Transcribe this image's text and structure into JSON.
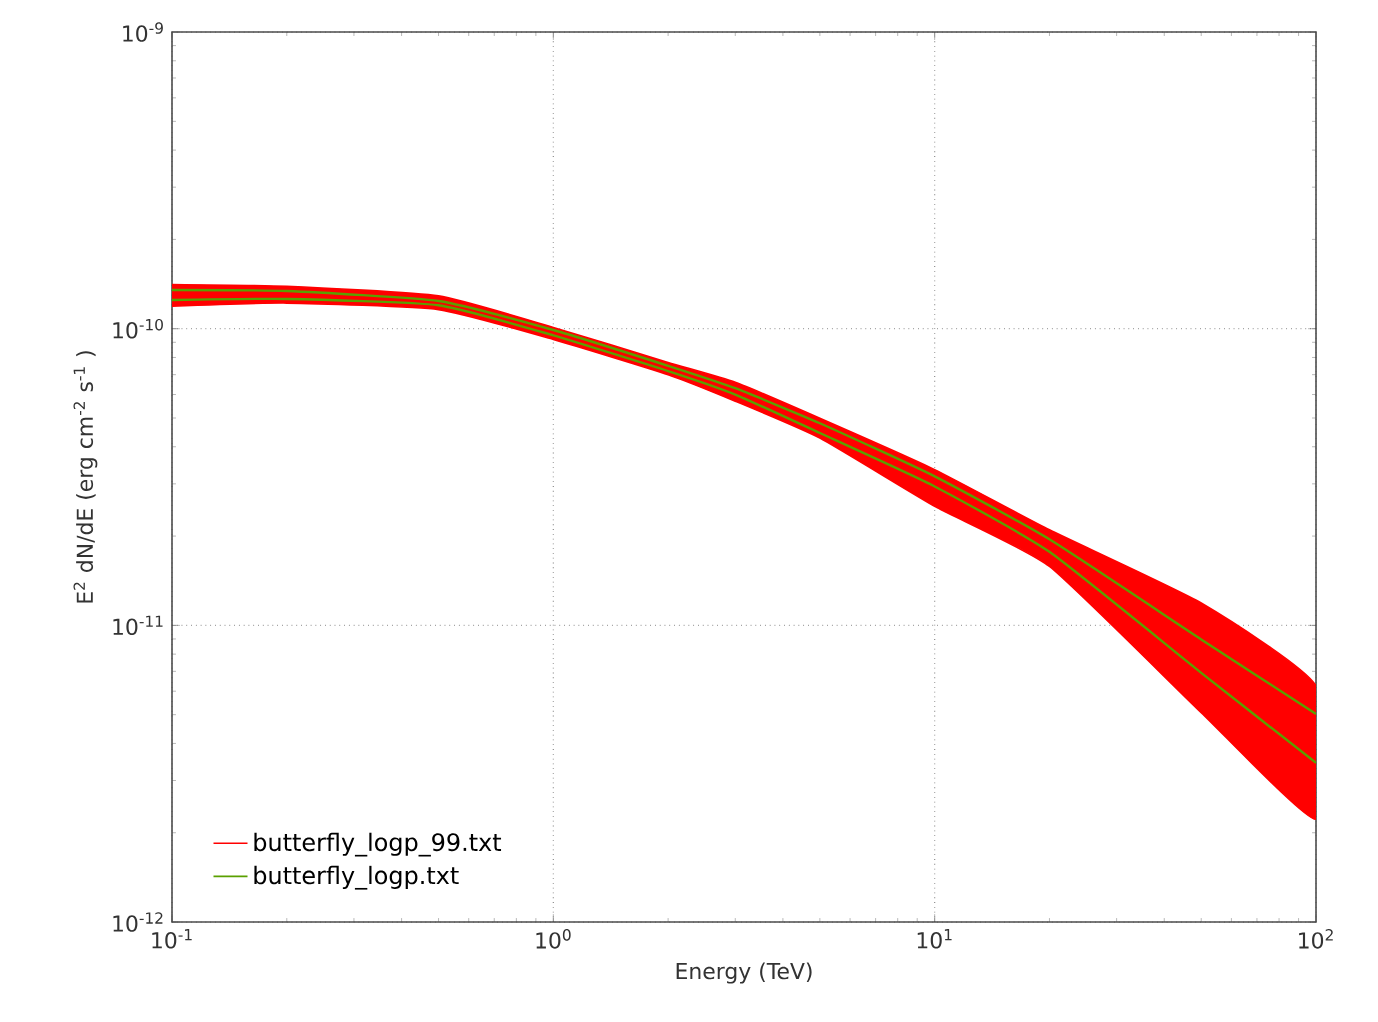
{
  "chart_data": {
    "type": "line",
    "xlabel": "Energy (TeV)",
    "ylabel": "E$^{2}$ dN/dE (erg cm$^{-2}$ s$^{-1}$ )",
    "log": "xy",
    "grid": true,
    "legend": "bottom left",
    "marker": "none",
    "line_style": "solid",
    "xlim": [
      0.1,
      100
    ],
    "ylim": [
      1e-12,
      1e-09
    ],
    "xticks": [
      {
        "value": 0.1,
        "label": "10$^{-1}$"
      },
      {
        "value": 1,
        "label": "10$^{0}$"
      },
      {
        "value": 10,
        "label": "10$^{1}$"
      },
      {
        "value": 100,
        "label": "10$^{2}$"
      }
    ],
    "yticks": [
      {
        "value": 1e-12,
        "label": "10$^{-12}$"
      },
      {
        "value": 1e-11,
        "label": "10$^{-11}$"
      },
      {
        "value": 1e-10,
        "label": "10$^{-10}$"
      },
      {
        "value": 1e-09,
        "label": "10$^{-9}$"
      }
    ],
    "x": [
      0.1,
      0.2,
      0.5,
      1,
      2,
      3,
      5,
      10,
      20,
      50,
      100
    ],
    "series": [
      {
        "name": "butterfly_logp_99.txt",
        "color": "#ff0000",
        "values": [
          null,
          null,
          null,
          null,
          null,
          null,
          null,
          null,
          null,
          null,
          null
        ],
        "lower": [
          1.19e-10,
          1.22e-10,
          1.16e-10,
          9.2e-11,
          7e-11,
          5.7e-11,
          4.28e-11,
          2.52e-11,
          1.58e-11,
          5.08e-12,
          2.22e-12
        ],
        "upper": [
          1.41e-10,
          1.39e-10,
          1.29e-10,
          1.01e-10,
          7.7e-11,
          6.6e-11,
          4.99e-11,
          3.35e-11,
          2.1e-11,
          1.19e-11,
          6.25e-12
        ]
      },
      {
        "name": "butterfly_logp.txt",
        "color": "#5aa000",
        "values": [
          1.35e-10,
          1.34e-10,
          1.24e-10,
          9.9e-11,
          7.5e-11,
          6.3e-11,
          4.8e-11,
          3.18e-11,
          1.95e-11,
          8.97e-12,
          5.03e-12
        ]
      },
      {
        "color": "#5aa000",
        "values": [
          1.25e-10,
          1.26e-10,
          1.2e-10,
          9.5e-11,
          7.2e-11,
          6e-11,
          4.45e-11,
          2.94e-11,
          1.77e-11,
          6.92e-12,
          3.44e-12
        ]
      }
    ]
  }
}
